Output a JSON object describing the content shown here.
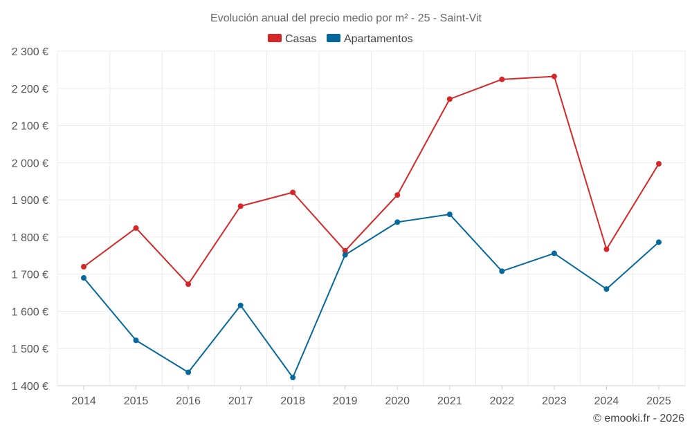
{
  "chart_data": {
    "type": "line",
    "title": "Evolución anual del precio medio por m² - 25 - Saint-Vit",
    "categories": [
      "2014",
      "2015",
      "2016",
      "2017",
      "2018",
      "2019",
      "2020",
      "2021",
      "2022",
      "2023",
      "2024",
      "2025"
    ],
    "series": [
      {
        "name": "Casas",
        "color": "#d62728",
        "values": [
          1720,
          1824,
          1673,
          1883,
          1920,
          1763,
          1913,
          2171,
          2224,
          2232,
          1767,
          1997
        ]
      },
      {
        "name": "Apartamentos",
        "color": "#04689c",
        "values": [
          1690,
          1522,
          1436,
          1616,
          1422,
          1752,
          1840,
          1861,
          1708,
          1756,
          1660,
          1786
        ]
      }
    ],
    "ylim": [
      1400,
      2300
    ],
    "yticks": [
      1400,
      1500,
      1600,
      1700,
      1800,
      1900,
      2000,
      2100,
      2200,
      2300
    ],
    "ytick_labels": [
      "1 400 €",
      "1 500 €",
      "1 600 €",
      "1 700 €",
      "1 800 €",
      "1 900 €",
      "2 000 €",
      "2 100 €",
      "2 200 €",
      "2 300 €"
    ],
    "xlabel": "",
    "ylabel": "",
    "grid": true,
    "legend_position": "top-center"
  },
  "credit": "© emooki.fr - 2026"
}
